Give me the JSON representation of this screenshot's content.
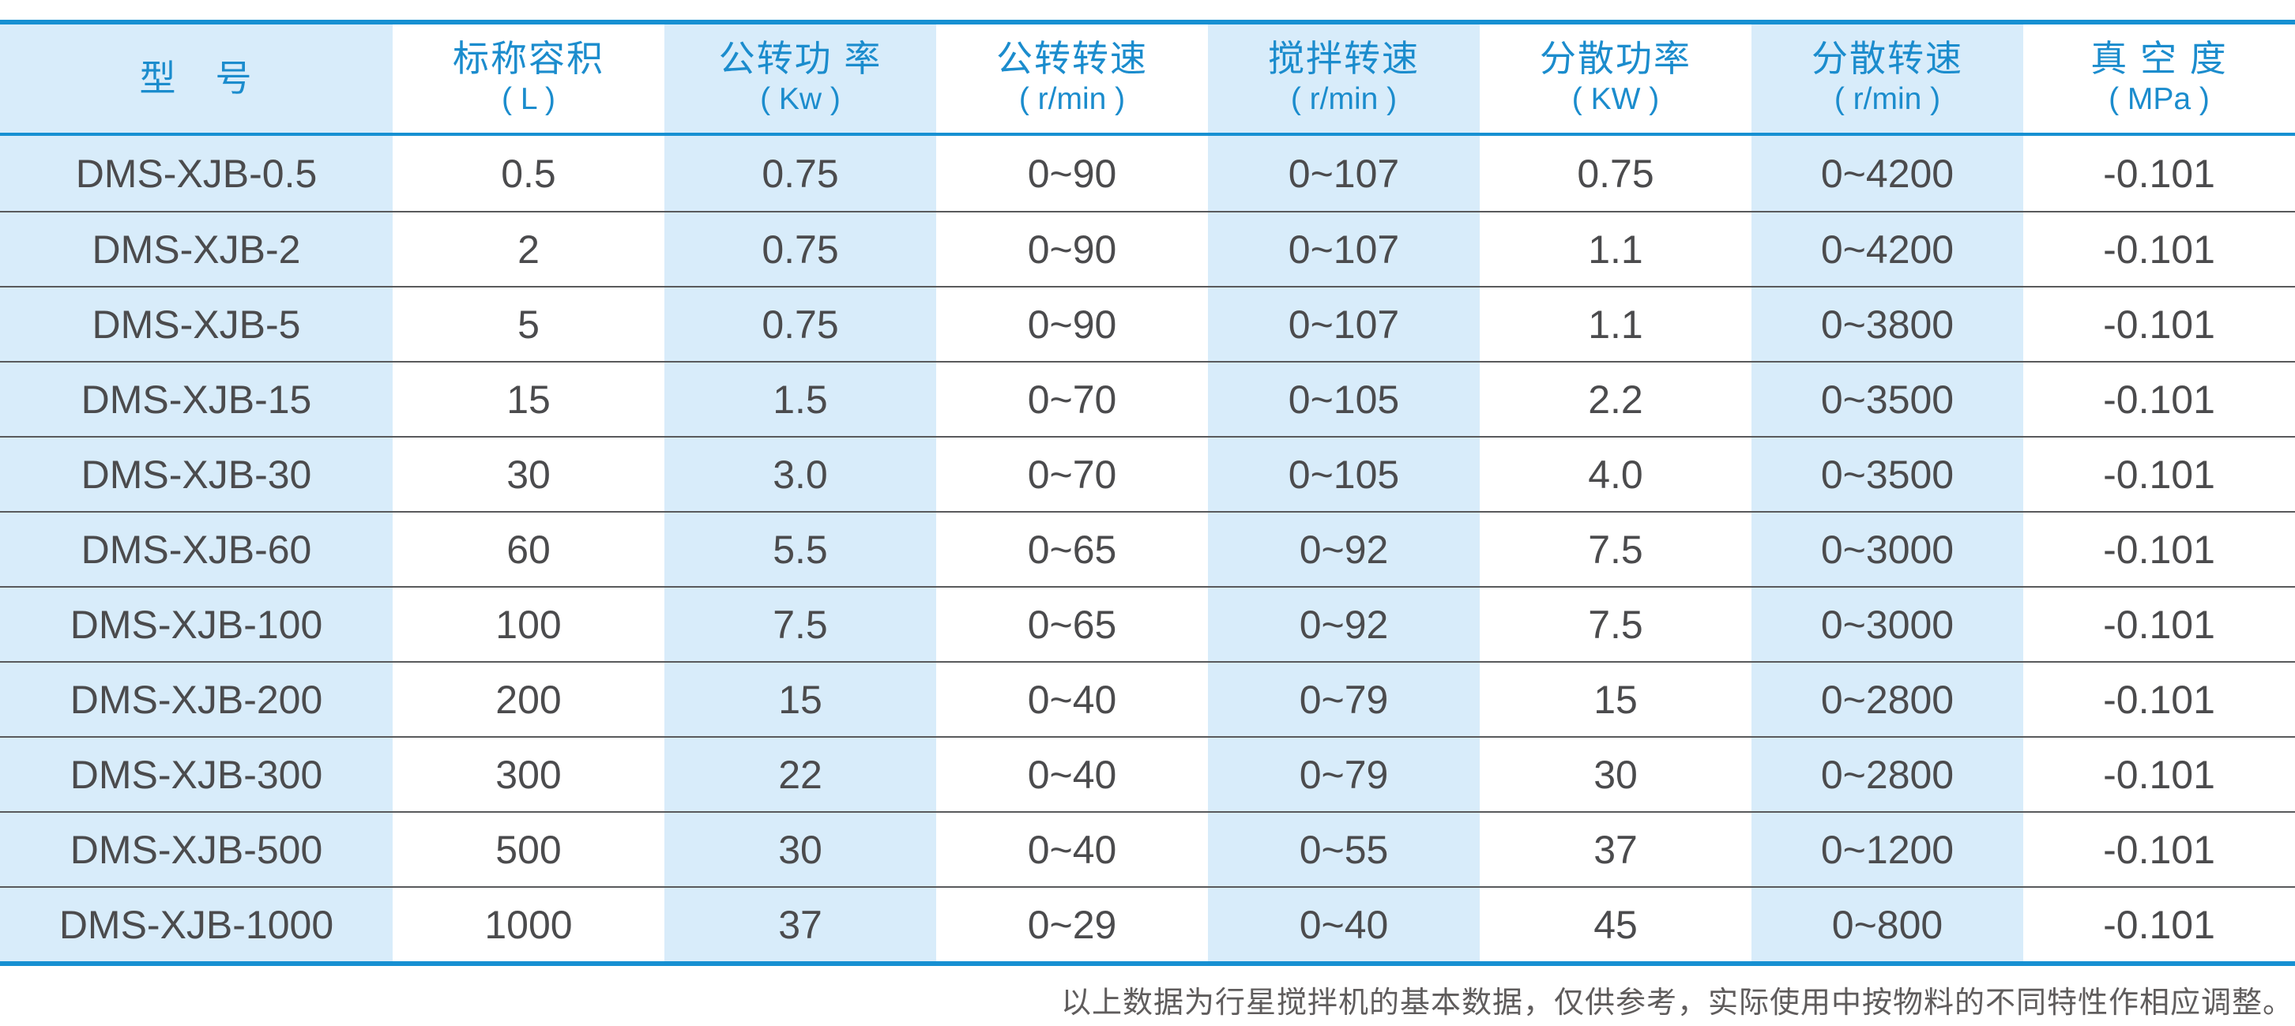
{
  "colors": {
    "accent_blue": "#1790d2",
    "header_text_blue": "#1b8ccd",
    "stripe_blue": "#d8ecfa",
    "body_text": "#4b4b4d",
    "row_line": "#595a5c",
    "footer_text": "#5f5c5c"
  },
  "table": {
    "headers": [
      {
        "label": "型　号",
        "unit": ""
      },
      {
        "label": "标称容积",
        "unit": "( L )"
      },
      {
        "label": "公转功 率",
        "unit": "( Kw )"
      },
      {
        "label": "公转转速",
        "unit": "( r/min )"
      },
      {
        "label": "搅拌转速",
        "unit": "( r/min )"
      },
      {
        "label": "分散功率",
        "unit": "( KW )"
      },
      {
        "label": "分散转速",
        "unit": "( r/min )"
      },
      {
        "label": "真 空 度",
        "unit": "( MPa )"
      }
    ],
    "rows": [
      {
        "cells": [
          "DMS-XJB-0.5",
          "0.5",
          "0.75",
          "0~90",
          "0~107",
          "0.75",
          "0~4200",
          "-0.101"
        ]
      },
      {
        "cells": [
          "DMS-XJB-2",
          "2",
          "0.75",
          "0~90",
          "0~107",
          "1.1",
          "0~4200",
          "-0.101"
        ]
      },
      {
        "cells": [
          "DMS-XJB-5",
          "5",
          "0.75",
          "0~90",
          "0~107",
          "1.1",
          "0~3800",
          "-0.101"
        ]
      },
      {
        "cells": [
          "DMS-XJB-15",
          "15",
          "1.5",
          "0~70",
          "0~105",
          "2.2",
          "0~3500",
          "-0.101"
        ]
      },
      {
        "cells": [
          "DMS-XJB-30",
          "30",
          "3.0",
          "0~70",
          "0~105",
          "4.0",
          "0~3500",
          "-0.101"
        ]
      },
      {
        "cells": [
          "DMS-XJB-60",
          "60",
          "5.5",
          "0~65",
          "0~92",
          "7.5",
          "0~3000",
          "-0.101"
        ]
      },
      {
        "cells": [
          "DMS-XJB-100",
          "100",
          "7.5",
          "0~65",
          "0~92",
          "7.5",
          "0~3000",
          "-0.101"
        ]
      },
      {
        "cells": [
          "DMS-XJB-200",
          "200",
          "15",
          "0~40",
          "0~79",
          "15",
          "0~2800",
          "-0.101"
        ]
      },
      {
        "cells": [
          "DMS-XJB-300",
          "300",
          "22",
          "0~40",
          "0~79",
          "30",
          "0~2800",
          "-0.101"
        ]
      },
      {
        "cells": [
          "DMS-XJB-500",
          "500",
          "30",
          "0~40",
          "0~55",
          "37",
          "0~1200",
          "-0.101"
        ]
      },
      {
        "cells": [
          "DMS-XJB-1000",
          "1000",
          "37",
          "0~29",
          "0~40",
          "45",
          "0~800",
          "-0.101"
        ]
      }
    ]
  },
  "footer": {
    "note": "以上数据为行星搅拌机的基本数据，仅供参考，实际使用中按物料的不同特性作相应调整。"
  }
}
